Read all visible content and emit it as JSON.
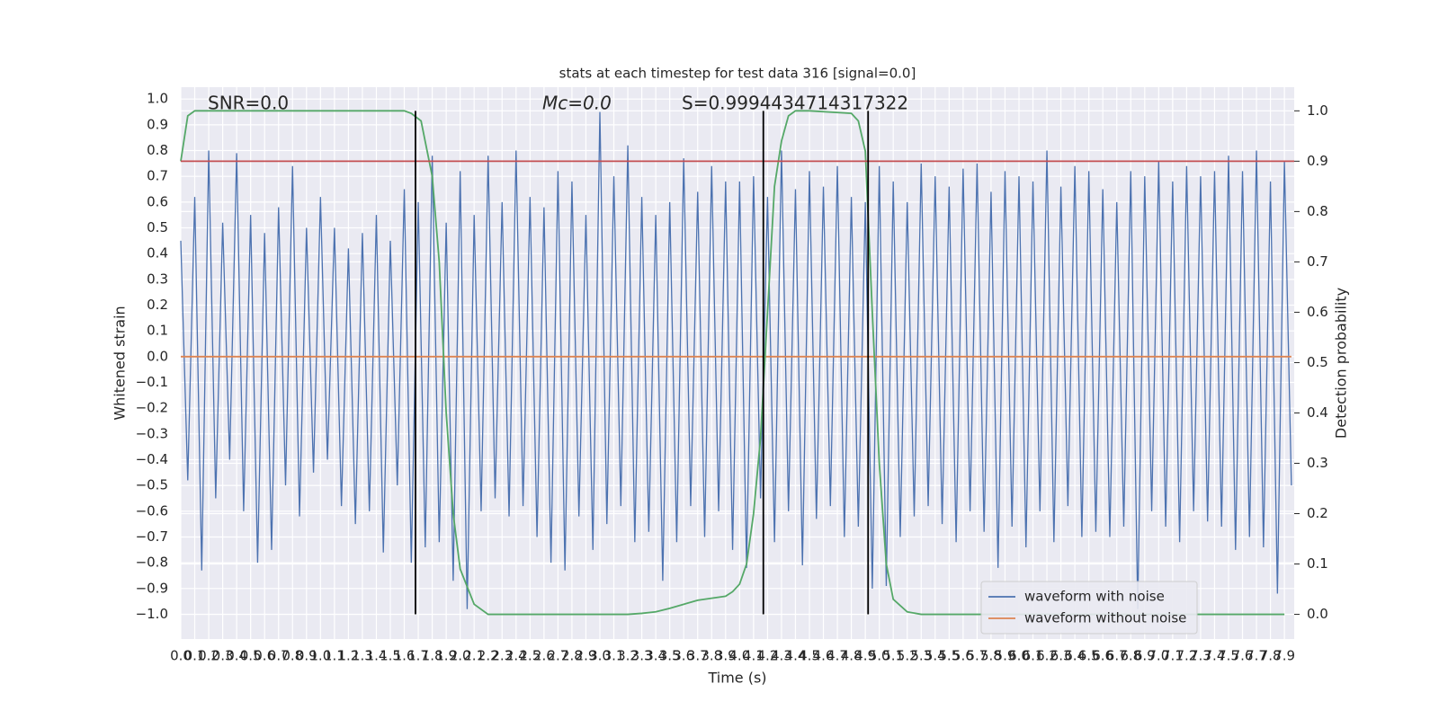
{
  "chart_data": {
    "type": "line",
    "title": "stats at each timestep for test data 316 [signal=0.0]",
    "x_label": "Time (s)",
    "y_label": "Whitened strain",
    "y2_label": "Detection probability",
    "annotations": [
      "SNR=0.0",
      "Mc=0.0",
      "S=0.9994434714317322"
    ],
    "xlim": [
      0,
      7.97
    ],
    "ylim": [
      -1.096,
      1.046
    ],
    "y2lim": [
      -0.049,
      1.047
    ],
    "grid": true,
    "legend": "lower right",
    "xticks": [
      {
        "value": 0,
        "label": "0.0"
      },
      0.1,
      0.2,
      0.3,
      0.4,
      0.5,
      0.6,
      0.7,
      0.8,
      0.9,
      {
        "value": 1,
        "label": "1.0"
      },
      1.1,
      1.2,
      1.3,
      1.4,
      1.5,
      1.6,
      1.7,
      1.8,
      1.9,
      {
        "value": 2,
        "label": "2.0"
      },
      2.1,
      2.2,
      2.3,
      2.4,
      2.5,
      2.6,
      2.7,
      2.8,
      2.9,
      {
        "value": 3,
        "label": "3.0"
      },
      3.1,
      3.2,
      3.3,
      3.4,
      3.5,
      3.6,
      3.7,
      3.8,
      3.9,
      {
        "value": 4,
        "label": "4.0"
      },
      4.1,
      4.2,
      4.3,
      4.4,
      4.5,
      4.6,
      4.7,
      4.8,
      4.9,
      {
        "value": 5,
        "label": "5.0"
      },
      5.1,
      5.2,
      5.3,
      5.4,
      5.5,
      5.6,
      5.7,
      5.8,
      5.9,
      {
        "value": 6,
        "label": "6.0"
      },
      6.1,
      6.2,
      6.3,
      6.4,
      6.5,
      6.6,
      6.7,
      6.8,
      6.9,
      {
        "value": 7,
        "label": "7.0"
      },
      7.1,
      7.2,
      7.3,
      7.4,
      7.5,
      7.6,
      7.7,
      7.8,
      7.9
    ],
    "yticks": [
      {
        "value": -1,
        "label": "−1.0"
      },
      {
        "value": -0.9,
        "label": "−0.9"
      },
      {
        "value": -0.8,
        "label": "−0.8"
      },
      {
        "value": -0.7,
        "label": "−0.7"
      },
      {
        "value": -0.6,
        "label": "−0.6"
      },
      {
        "value": -0.5,
        "label": "−0.5"
      },
      {
        "value": -0.4,
        "label": "−0.4"
      },
      {
        "value": -0.3,
        "label": "−0.3"
      },
      {
        "value": -0.2,
        "label": "−0.2"
      },
      {
        "value": -0.1,
        "label": "−0.1"
      },
      {
        "value": 0,
        "label": "0.0"
      },
      0.1,
      0.2,
      0.3,
      0.4,
      0.5,
      0.6,
      0.7,
      0.8,
      0.9,
      {
        "value": 1,
        "label": "1.0"
      }
    ],
    "y2ticks": [
      {
        "value": 0,
        "label": "0.0"
      },
      0.1,
      0.2,
      0.3,
      0.4,
      0.5,
      0.6,
      0.7,
      0.8,
      0.9,
      {
        "value": 1,
        "label": "1.0"
      }
    ],
    "series": [
      {
        "name": "waveform with noise",
        "color": "#4c72b0",
        "axis": "y",
        "x": [
          0,
          0.05,
          0.1,
          0.15,
          0.2,
          0.25,
          0.3,
          0.35,
          0.4,
          0.45,
          0.5,
          0.55,
          0.6,
          0.65,
          0.7,
          0.75,
          0.8,
          0.85,
          0.9,
          0.95,
          1,
          1.05,
          1.1,
          1.15,
          1.2,
          1.25,
          1.3,
          1.35,
          1.4,
          1.45,
          1.5,
          1.55,
          1.6,
          1.65,
          1.7,
          1.75,
          1.8,
          1.85,
          1.9,
          1.95,
          2,
          2.05,
          2.1,
          2.15,
          2.2,
          2.25,
          2.3,
          2.35,
          2.4,
          2.45,
          2.5,
          2.55,
          2.6,
          2.65,
          2.7,
          2.75,
          2.8,
          2.85,
          2.9,
          2.95,
          3,
          3.05,
          3.1,
          3.15,
          3.2,
          3.25,
          3.3,
          3.35,
          3.4,
          3.45,
          3.5,
          3.55,
          3.6,
          3.65,
          3.7,
          3.75,
          3.8,
          3.85,
          3.9,
          3.95,
          4,
          4.05,
          4.1,
          4.15,
          4.2,
          4.25,
          4.3,
          4.35,
          4.4,
          4.45,
          4.5,
          4.55,
          4.6,
          4.65,
          4.7,
          4.75,
          4.8,
          4.85,
          4.9,
          4.95,
          5,
          5.05,
          5.1,
          5.15,
          5.2,
          5.25,
          5.3,
          5.35,
          5.4,
          5.45,
          5.5,
          5.55,
          5.6,
          5.65,
          5.7,
          5.75,
          5.8,
          5.85,
          5.9,
          5.95,
          6,
          6.05,
          6.1,
          6.15,
          6.2,
          6.25,
          6.3,
          6.35,
          6.4,
          6.45,
          6.5,
          6.55,
          6.6,
          6.65,
          6.7,
          6.75,
          6.8,
          6.85,
          6.9,
          6.95,
          7,
          7.05,
          7.1,
          7.15,
          7.2,
          7.25,
          7.3,
          7.35,
          7.4,
          7.45,
          7.5,
          7.55,
          7.6,
          7.65,
          7.7,
          7.75,
          7.8,
          7.85,
          7.9,
          7.95
        ],
        "values": [
          0.45,
          -0.48,
          0.62,
          -0.83,
          0.8,
          -0.55,
          0.52,
          -0.4,
          0.79,
          -0.6,
          0.55,
          -0.8,
          0.48,
          -0.75,
          0.58,
          -0.5,
          0.74,
          -0.62,
          0.5,
          -0.45,
          0.62,
          -0.4,
          0.5,
          -0.58,
          0.42,
          -0.65,
          0.48,
          -0.6,
          0.55,
          -0.76,
          0.45,
          -0.5,
          0.65,
          -0.8,
          0.6,
          -0.74,
          0.78,
          -0.72,
          0.52,
          -0.87,
          0.72,
          -0.98,
          0.55,
          -0.6,
          0.78,
          -0.55,
          0.6,
          -0.62,
          0.8,
          -0.58,
          0.62,
          -0.7,
          0.58,
          -0.8,
          0.72,
          -0.83,
          0.68,
          -0.62,
          0.55,
          -0.75,
          0.95,
          -0.65,
          0.7,
          -0.58,
          0.82,
          -0.72,
          0.62,
          -0.68,
          0.55,
          -0.87,
          0.6,
          -0.72,
          0.77,
          -0.58,
          0.64,
          -0.7,
          0.74,
          -0.6,
          0.68,
          -0.75,
          0.68,
          -0.82,
          0.7,
          -0.55,
          0.62,
          -0.72,
          0.8,
          -0.6,
          0.65,
          -0.81,
          0.72,
          -0.63,
          0.66,
          -0.58,
          0.74,
          -0.7,
          0.62,
          -0.66,
          0.6,
          -0.9,
          0.74,
          -0.89,
          0.68,
          -0.7,
          0.6,
          -0.62,
          0.75,
          -0.58,
          0.7,
          -0.65,
          0.66,
          -0.72,
          0.73,
          -0.6,
          0.75,
          -0.68,
          0.64,
          -0.82,
          0.72,
          -0.66,
          0.7,
          -0.74,
          0.68,
          -0.6,
          0.8,
          -0.72,
          0.66,
          -0.58,
          0.74,
          -0.7,
          0.72,
          -0.68,
          0.65,
          -0.7,
          0.6,
          -0.66,
          0.72,
          -0.98,
          0.7,
          -0.6,
          0.76,
          -0.66,
          0.68,
          -0.72,
          0.74,
          -0.6,
          0.7,
          -0.64,
          0.72,
          -0.66,
          0.78,
          -0.75,
          0.72,
          -0.7,
          0.8,
          -0.74,
          0.68,
          -0.92,
          0.76,
          -0.5
        ]
      },
      {
        "name": "waveform without noise",
        "color": "#dd8452",
        "axis": "y",
        "x": [
          0,
          7.95
        ],
        "values": [
          0,
          0
        ]
      },
      {
        "color": "#55a868",
        "axis": "y2",
        "x": [
          0,
          0.05,
          0.1,
          0.3,
          0.6,
          1,
          1.3,
          1.6,
          1.65,
          1.72,
          1.8,
          1.85,
          1.9,
          1.95,
          2,
          2.1,
          2.2,
          2.4,
          3.2,
          3.3,
          3.4,
          3.5,
          3.6,
          3.7,
          3.8,
          3.9,
          3.95,
          4,
          4.05,
          4.1,
          4.15,
          4.2,
          4.25,
          4.3,
          4.35,
          4.4,
          4.5,
          4.8,
          4.85,
          4.9,
          4.95,
          5,
          5.05,
          5.1,
          5.2,
          5.3,
          7.9
        ],
        "values": [
          0.9,
          0.99,
          1,
          1,
          1,
          1,
          1,
          1,
          0.995,
          0.98,
          0.87,
          0.7,
          0.4,
          0.2,
          0.09,
          0.02,
          0,
          0,
          0,
          0.002,
          0.005,
          0.012,
          0.02,
          0.028,
          0.032,
          0.036,
          0.045,
          0.06,
          0.1,
          0.2,
          0.35,
          0.6,
          0.85,
          0.94,
          0.99,
          1,
          1,
          0.995,
          0.98,
          0.92,
          0.6,
          0.3,
          0.1,
          0.03,
          0.005,
          0,
          0
        ]
      }
    ],
    "hline": {
      "value": 0.9,
      "axis": "y2",
      "color": "#c44e52"
    },
    "vlines": {
      "x": [
        1.68,
        4.17,
        4.92
      ],
      "y2range": [
        0,
        1
      ],
      "color": "#000000"
    }
  }
}
